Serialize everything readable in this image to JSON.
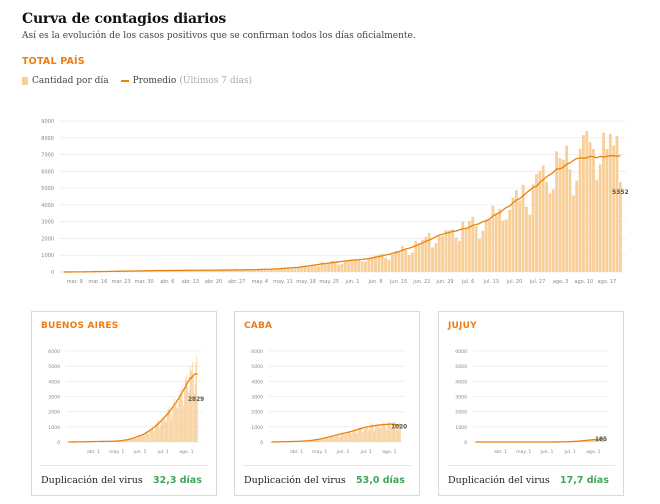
{
  "header": {
    "title": "Curva de contagios diarios",
    "subtitle": "Así es la evolución de los casos positivos que se confirman todos los días oficialmente."
  },
  "section_label": "TOTAL PAÍS",
  "legend": {
    "bars": "Cantidad por día",
    "line": "Promedio",
    "line_note": "(Últimos 7 días)"
  },
  "colors": {
    "bars": "#f8cf98",
    "line": "#e8830f",
    "accent": "#f07b13",
    "green": "#3fa65a",
    "grid": "#ececec"
  },
  "chart_data": [
    {
      "type": "bar",
      "name": "total-pais",
      "title": "TOTAL PAÍS",
      "x_tick_labels": [
        "mar. 9",
        "mar. 16",
        "mar. 23",
        "mar. 30",
        "abr. 6",
        "abr. 13",
        "abr. 20",
        "abr. 27",
        "may. 4",
        "may. 11",
        "may. 18",
        "may. 25",
        "jun. 1",
        "jun. 8",
        "jun. 15",
        "jun. 22",
        "jun. 29",
        "jul. 6",
        "jul. 13",
        "jul. 20",
        "jul. 27",
        "ago. 3",
        "ago. 10",
        "ago. 17"
      ],
      "y_ticks": [
        0,
        1000,
        2000,
        3000,
        4000,
        5000,
        6000,
        7000,
        8000,
        9000
      ],
      "ylim": [
        0,
        9000
      ],
      "days": 167,
      "series": [
        {
          "name": "Cantidad por día",
          "kind": "bars",
          "weekly": [
            2,
            12,
            40,
            70,
            95,
            105,
            120,
            125,
            145,
            200,
            310,
            550,
            720,
            820,
            1180,
            1680,
            2400,
            2680,
            3300,
            4200,
            5300,
            6500,
            7300,
            8200
          ],
          "end_value": 5352
        },
        {
          "name": "Promedio",
          "kind": "line",
          "weekly": [
            2,
            11,
            35,
            62,
            86,
            97,
            110,
            118,
            135,
            180,
            280,
            480,
            660,
            790,
            1100,
            1550,
            2200,
            2550,
            3050,
            3950,
            5000,
            6100,
            6800,
            6900
          ]
        }
      ],
      "end_label": "5352",
      "grid": true
    },
    {
      "type": "bar",
      "name": "buenos-aires",
      "title": "BUENOS AIRES",
      "x_tick_labels": [
        "abr. 1",
        "may. 1",
        "jun. 1",
        "jul. 1",
        "ago. 1"
      ],
      "y_ticks": [
        0,
        1000,
        2000,
        3000,
        4000,
        5000,
        6000
      ],
      "ylim": [
        0,
        6000
      ],
      "days": 157,
      "series": [
        {
          "name": "Cantidad por día",
          "kind": "bars",
          "weekly": [
            0,
            5,
            10,
            20,
            30,
            35,
            40,
            45,
            60,
            90,
            150,
            250,
            400,
            550,
            800,
            1100,
            1500,
            1900,
            2400,
            3000,
            3700,
            4500,
            5200
          ],
          "end_value": 2829
        },
        {
          "name": "Promedio",
          "kind": "line",
          "weekly": [
            0,
            4,
            9,
            18,
            27,
            33,
            38,
            43,
            55,
            85,
            140,
            230,
            370,
            510,
            750,
            1030,
            1400,
            1800,
            2300,
            2850,
            3500,
            4200,
            4500
          ]
        }
      ],
      "end_label": "2829",
      "duplication_label": "Duplicación del virus",
      "duplication_value": "32,3 días"
    },
    {
      "type": "bar",
      "name": "caba",
      "title": "CABA",
      "x_tick_labels": [
        "abr. 1",
        "may. 1",
        "jun. 1",
        "jul. 1",
        "ago. 1"
      ],
      "y_ticks": [
        0,
        1000,
        2000,
        3000,
        4000,
        5000,
        6000
      ],
      "ylim": [
        0,
        6000
      ],
      "days": 157,
      "series": [
        {
          "name": "Cantidad por día",
          "kind": "bars",
          "weekly": [
            0,
            10,
            20,
            30,
            40,
            50,
            80,
            120,
            180,
            260,
            360,
            460,
            560,
            640,
            740,
            860,
            980,
            1060,
            1120,
            1180,
            1200,
            1250,
            1200
          ],
          "end_value": 1020
        },
        {
          "name": "Promedio",
          "kind": "line",
          "weekly": [
            0,
            9,
            18,
            28,
            38,
            48,
            75,
            110,
            170,
            245,
            340,
            440,
            540,
            620,
            720,
            840,
            950,
            1030,
            1090,
            1140,
            1160,
            1180,
            1100
          ]
        }
      ],
      "end_label": "1020",
      "duplication_label": "Duplicación del virus",
      "duplication_value": "53,0 días"
    },
    {
      "type": "bar",
      "name": "jujuy",
      "title": "JUJUY",
      "x_tick_labels": [
        "abr. 1",
        "may. 1",
        "jun. 1",
        "jul. 1",
        "ago. 1"
      ],
      "y_ticks": [
        0,
        1000,
        2000,
        3000,
        4000,
        5000,
        6000
      ],
      "ylim": [
        0,
        6000
      ],
      "days": 157,
      "series": [
        {
          "name": "Cantidad por día",
          "kind": "bars",
          "weekly": [
            0,
            0,
            0,
            0,
            0,
            0,
            0,
            0,
            0,
            0,
            0,
            0,
            0,
            2,
            5,
            10,
            20,
            40,
            70,
            110,
            150,
            200,
            240
          ],
          "end_value": 185
        },
        {
          "name": "Promedio",
          "kind": "line",
          "weekly": [
            0,
            0,
            0,
            0,
            0,
            0,
            0,
            0,
            0,
            0,
            0,
            0,
            0,
            2,
            4,
            9,
            18,
            35,
            62,
            100,
            140,
            180,
            200
          ]
        }
      ],
      "end_label": "185",
      "duplication_label": "Duplicación del virus",
      "duplication_value": "17,7 días"
    }
  ]
}
